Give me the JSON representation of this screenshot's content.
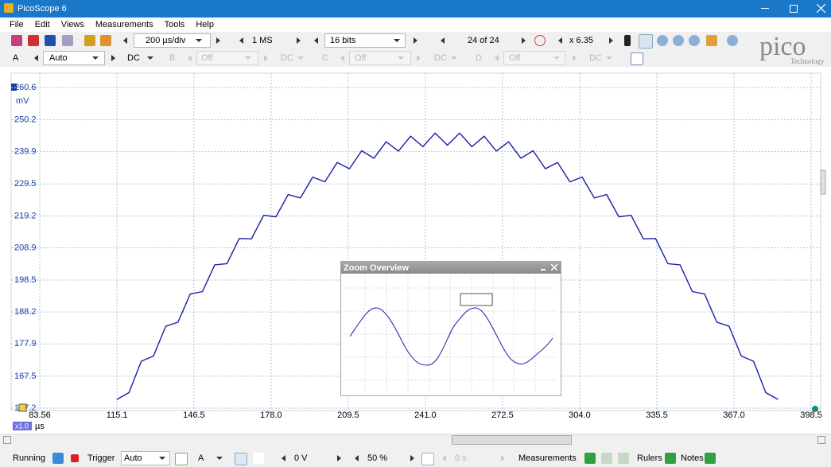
{
  "window": {
    "title": "PicoScope 6"
  },
  "menu": [
    "File",
    "Edit",
    "Views",
    "Measurements",
    "Tools",
    "Help"
  ],
  "toolbar": {
    "timebase": "200 µs/div",
    "samples": "1 MS",
    "resolution": "16 bits",
    "buffer": "24 of 24",
    "zoom": "x 6.35"
  },
  "logo": {
    "name": "pico",
    "tagline": "Technology"
  },
  "channels": [
    {
      "name": "A",
      "range": "Auto",
      "coupling": "DC"
    },
    {
      "name": "B",
      "range": "Off",
      "coupling": "DC"
    },
    {
      "name": "C",
      "range": "Off",
      "coupling": "DC"
    },
    {
      "name": "D",
      "range": "Off",
      "coupling": "DC"
    }
  ],
  "chart_data": {
    "type": "line",
    "y_unit": "mV",
    "x_unit": "µs",
    "x_zoom": "x1.0",
    "color": "#1c1ca8",
    "grid": true,
    "xlim": [
      83.56,
      398.5
    ],
    "ylim": [
      157.2,
      260.6
    ],
    "xticks": [
      83.56,
      115.1,
      146.5,
      {
        "value": 178,
        "label": "178.0"
      },
      209.5,
      {
        "value": 241,
        "label": "241.0"
      },
      272.5,
      {
        "value": 304,
        "label": "304.0"
      },
      335.5,
      {
        "value": 367,
        "label": "367.0"
      },
      398.5
    ],
    "yticks": [
      260.6,
      250.2,
      239.9,
      229.5,
      219.2,
      208.9,
      198.5,
      188.2,
      177.9,
      167.5,
      157.2
    ],
    "x": [
      115,
      120,
      125,
      130,
      135,
      140,
      145,
      150,
      155,
      160,
      165,
      170,
      175,
      180,
      185,
      190,
      195,
      200,
      205,
      210,
      215,
      220,
      225,
      230,
      235,
      240,
      245,
      250,
      255,
      260,
      265,
      270,
      275,
      280,
      285,
      290,
      295,
      300,
      305,
      310,
      315,
      320,
      325,
      330,
      335,
      340,
      345,
      350,
      355,
      360,
      365,
      370,
      375,
      380,
      385
    ],
    "values": [
      160.0,
      162.2,
      172.3,
      174.0,
      183.6,
      184.9,
      194.0,
      194.8,
      203.4,
      203.8,
      211.9,
      211.8,
      219.4,
      218.9,
      226.1,
      225.0,
      231.7,
      230.2,
      236.4,
      234.4,
      240.2,
      237.8,
      243.1,
      240.1,
      244.9,
      241.5,
      245.9,
      242.0,
      245.9,
      241.5,
      244.9,
      240.1,
      243.1,
      237.8,
      240.2,
      234.4,
      236.4,
      230.2,
      231.7,
      225.0,
      226.1,
      218.9,
      219.4,
      211.8,
      211.9,
      203.8,
      203.4,
      194.8,
      194.0,
      184.9,
      183.6,
      174.0,
      172.3,
      162.2,
      160.0
    ]
  },
  "zoom_overview": {
    "title": "Zoom Overview"
  },
  "status_bar": {
    "state": "Running",
    "trigger_label": "Trigger",
    "trigger_mode": "Auto",
    "trigger_source": "A",
    "threshold": "0 V",
    "pretrigger": "50 %",
    "delay": "0 s",
    "measurements": "Measurements",
    "rulers": "Rulers",
    "notes": "Notes"
  }
}
